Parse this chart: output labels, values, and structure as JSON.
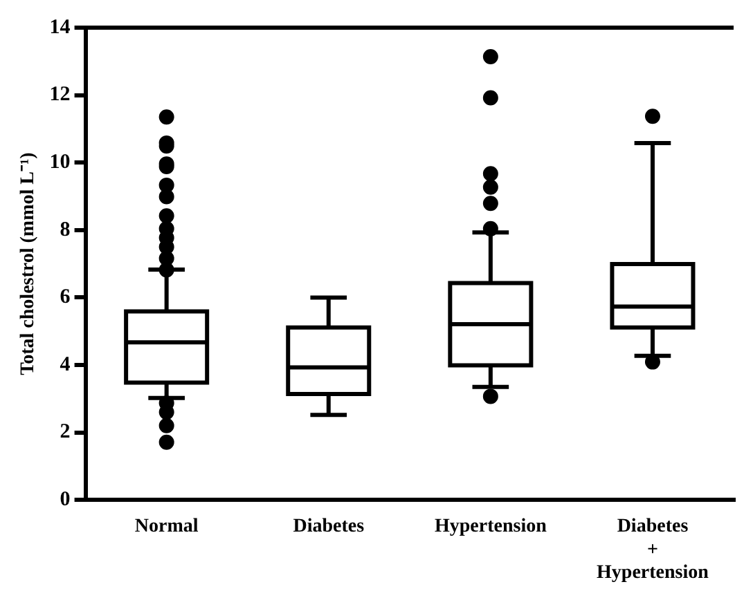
{
  "chart_data": {
    "type": "box",
    "ylabel": "Total cholestrol (mmol L⁻¹)",
    "categories": [
      "Normal",
      "Diabetes",
      "Hypertension",
      "Diabetes\n+\nHypertension"
    ],
    "ylim": [
      0,
      14
    ],
    "yticks": [
      0,
      2,
      4,
      6,
      8,
      10,
      12,
      14
    ],
    "grid": false,
    "marker": "circle",
    "color": "#000000",
    "boxes": [
      {
        "low": 3.02,
        "q1": 3.48,
        "median": 4.67,
        "q3": 5.59,
        "high": 6.83,
        "outliers": [
          11.35,
          10.58,
          10.49,
          9.96,
          9.88,
          9.33,
          8.99,
          8.42,
          8.04,
          7.77,
          7.5,
          7.16,
          6.82,
          2.87,
          2.6,
          2.2,
          1.71
        ]
      },
      {
        "low": 2.52,
        "q1": 3.14,
        "median": 3.93,
        "q3": 5.11,
        "high": 6.0
      },
      {
        "low": 3.35,
        "q1": 3.99,
        "median": 5.21,
        "q3": 6.43,
        "high": 7.93,
        "outliers": [
          13.14,
          11.92,
          9.67,
          9.27,
          8.79,
          8.04,
          3.07
        ]
      },
      {
        "low": 4.27,
        "q1": 5.11,
        "median": 5.73,
        "q3": 6.99,
        "high": 10.58,
        "outliers": [
          11.37,
          4.09
        ]
      }
    ]
  }
}
